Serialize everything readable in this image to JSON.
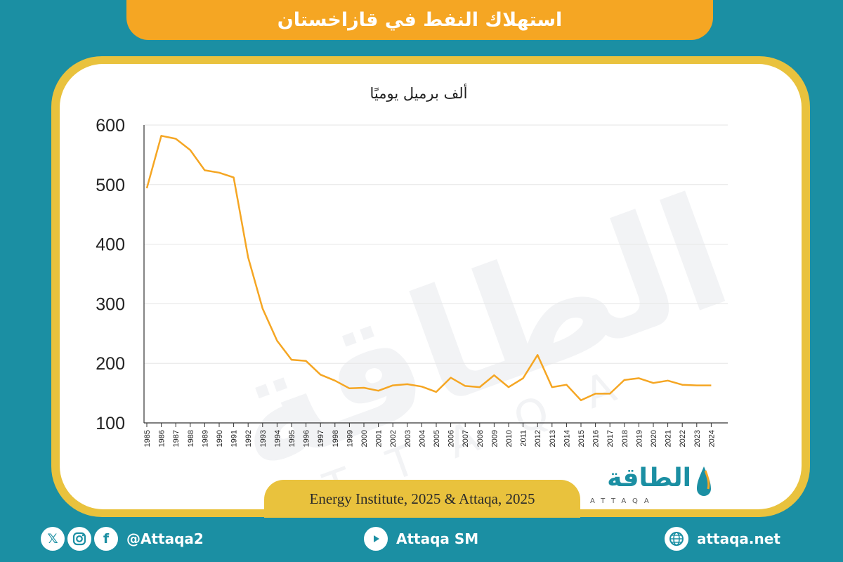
{
  "title": "استهلاك النفط في قازاخستان",
  "source": "Energy Institute, 2025 & Attaqa, 2025",
  "logo": {
    "arabic": "الطاقة",
    "latin": "ATTAQA"
  },
  "watermark": {
    "arabic": "الطاقة",
    "latin": "ATTAQA"
  },
  "footer": {
    "social_handle": "@Attaqa2",
    "youtube_handle": "Attaqa SM",
    "website": "attaqa.net",
    "icons": [
      "x-icon",
      "instagram-icon",
      "facebook-icon",
      "youtube-icon",
      "globe-icon"
    ]
  },
  "colors": {
    "background": "#1b8fa3",
    "accent": "#f5a623",
    "frame": "#e9c23d",
    "line": "#f5a623"
  },
  "chart_data": {
    "type": "line",
    "ylabel": "ألف برميل يوميًا",
    "ylim": [
      100,
      600
    ],
    "yticks": [
      100,
      200,
      300,
      400,
      500,
      600
    ],
    "grid": true,
    "x": [
      "1985",
      "1986",
      "1987",
      "1988",
      "1989",
      "1990",
      "1991",
      "1992",
      "1993",
      "1994",
      "1995",
      "1996",
      "1997",
      "1998",
      "1999",
      "2000",
      "2001",
      "2002",
      "2003",
      "2004",
      "2005",
      "2006",
      "2007",
      "2008",
      "2009",
      "2010",
      "2011",
      "2012",
      "2013",
      "2014",
      "2015",
      "2016",
      "2017",
      "2018",
      "2019",
      "2020",
      "2021",
      "2022",
      "2023",
      "2024"
    ],
    "series": [
      {
        "values": [
          494,
          582,
          577,
          558,
          524,
          520,
          512,
          378,
          292,
          238,
          206,
          204,
          181,
          171,
          158,
          159,
          154,
          163,
          165,
          161,
          152,
          176,
          162,
          160,
          180,
          160,
          175,
          214,
          160,
          164,
          138,
          149,
          149,
          172,
          175,
          167,
          171,
          164,
          163,
          163
        ]
      }
    ]
  }
}
